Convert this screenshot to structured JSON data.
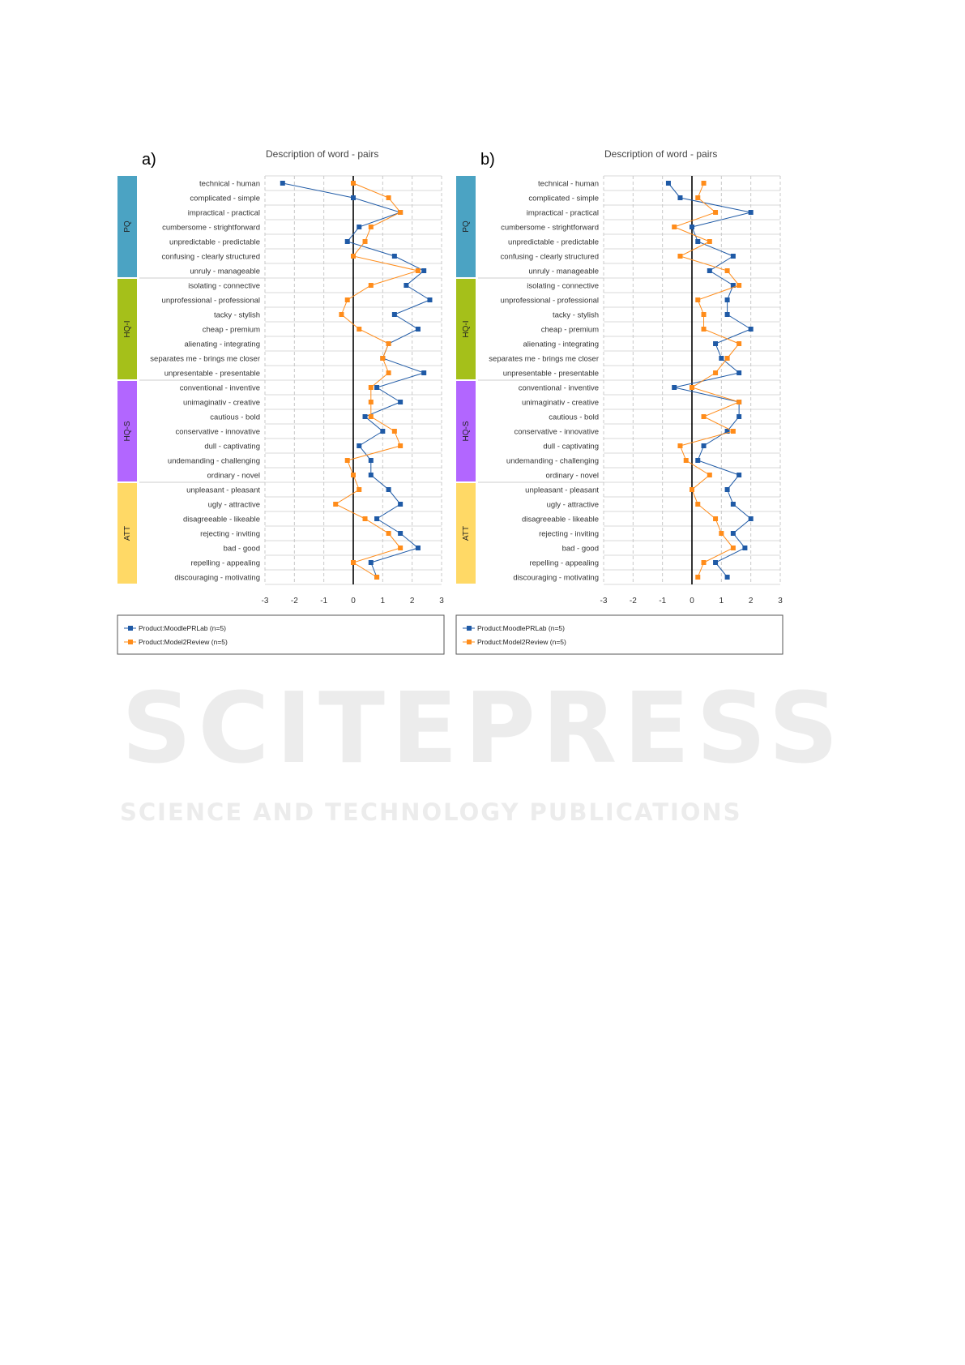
{
  "watermark": {
    "main": "SCITEPRESS",
    "sub": "SCIENCE AND TECHNOLOGY PUBLICATIONS"
  },
  "colors": {
    "blue": "#1f5aa6",
    "orange": "#ff8c1a",
    "PQ": "#4ba3c3",
    "HQ-I": "#a5c01a",
    "HQ-S": "#b266ff",
    "ATT": "#ffd966"
  },
  "chart_data": [
    {
      "type": "line",
      "panel_label": "a)",
      "title": "Description of word - pairs",
      "xlim": [
        -3,
        3
      ],
      "xticks": [
        "-3",
        "-2",
        "-1",
        "0",
        "1",
        "2",
        "3"
      ],
      "groups": [
        {
          "name": "PQ",
          "count": 7
        },
        {
          "name": "HQ-I",
          "count": 7
        },
        {
          "name": "HQ-S",
          "count": 7
        },
        {
          "name": "ATT",
          "count": 7
        }
      ],
      "categories": [
        "technical - human",
        "complicated - simple",
        "impractical - practical",
        "cumbersome - strightforward",
        "unpredictable - predictable",
        "confusing - clearly structured",
        "unruly - manageable",
        "isolating - connective",
        "unprofessional - professional",
        "tacky - stylish",
        "cheap - premium",
        "alienating - integrating",
        "separates me - brings me closer",
        "unpresentable - presentable",
        "conventional - inventive",
        "unimaginativ - creative",
        "cautious - bold",
        "conservative - innovative",
        "dull - captivating",
        "undemanding - challenging",
        "ordinary - novel",
        "unpleasant - pleasant",
        "ugly - attractive",
        "disagreeable - likeable",
        "rejecting - inviting",
        "bad - good",
        "repelling - appealing",
        "discouraging - motivating"
      ],
      "series": [
        {
          "name": "Product:MoodlePRLab (n=5)",
          "color": "blue",
          "values": [
            -2.4,
            0,
            1.6,
            0.2,
            -0.2,
            1.4,
            2.4,
            1.8,
            2.6,
            1.4,
            2.2,
            1.2,
            1.0,
            2.4,
            0.8,
            1.6,
            0.4,
            1.0,
            0.2,
            0.6,
            0.6,
            1.2,
            1.6,
            0.8,
            1.6,
            2.2,
            0.6,
            0.8
          ]
        },
        {
          "name": "Product:Model2Review (n=5)",
          "color": "orange",
          "values": [
            0,
            1.2,
            1.6,
            0.6,
            0.4,
            0,
            2.2,
            0.6,
            -0.2,
            -0.4,
            0.2,
            1.2,
            1.0,
            1.2,
            0.6,
            0.6,
            0.6,
            1.4,
            1.6,
            -0.2,
            0,
            0.2,
            -0.6,
            0.4,
            1.2,
            1.6,
            0,
            0.8
          ]
        }
      ],
      "legend_position": "bottom"
    },
    {
      "type": "line",
      "panel_label": "b)",
      "title": "Description of word - pairs",
      "xlim": [
        -3,
        3
      ],
      "xticks": [
        "-3",
        "-2",
        "-1",
        "0",
        "1",
        "2",
        "3"
      ],
      "groups": [
        {
          "name": "PQ",
          "count": 7
        },
        {
          "name": "HQ-I",
          "count": 7
        },
        {
          "name": "HQ-S",
          "count": 7
        },
        {
          "name": "ATT",
          "count": 7
        }
      ],
      "categories": [
        "technical - human",
        "complicated - simple",
        "impractical - practical",
        "cumbersome - strightforward",
        "unpredictable - predictable",
        "confusing - clearly structured",
        "unruly - manageable",
        "isolating - connective",
        "unprofessional - professional",
        "tacky - stylish",
        "cheap - premium",
        "alienating - integrating",
        "separates me - brings me closer",
        "unpresentable - presentable",
        "conventional - inventive",
        "unimaginativ - creative",
        "cautious - bold",
        "conservative - innovative",
        "dull - captivating",
        "undemanding - challenging",
        "ordinary - novel",
        "unpleasant - pleasant",
        "ugly - attractive",
        "disagreeable - likeable",
        "rejecting - inviting",
        "bad - good",
        "repelling - appealing",
        "discouraging - motivating"
      ],
      "series": [
        {
          "name": "Product:MoodlePRLab (n=5)",
          "color": "blue",
          "values": [
            -0.8,
            -0.4,
            2.0,
            0,
            0.2,
            1.4,
            0.6,
            1.4,
            1.2,
            1.2,
            2.0,
            0.8,
            1.0,
            1.6,
            -0.6,
            1.6,
            1.6,
            1.2,
            0.4,
            0.2,
            1.6,
            1.2,
            1.4,
            2.0,
            1.4,
            1.8,
            0.8,
            1.2
          ]
        },
        {
          "name": "Product:Model2Review (n=5)",
          "color": "orange",
          "values": [
            0.4,
            0.2,
            0.8,
            -0.6,
            0.6,
            -0.4,
            1.2,
            1.6,
            0.2,
            0.4,
            0.4,
            1.6,
            1.2,
            0.8,
            0,
            1.6,
            0.4,
            1.4,
            -0.4,
            -0.2,
            0.6,
            0,
            0.2,
            0.8,
            1.0,
            1.4,
            0.4,
            0.2
          ]
        }
      ],
      "legend_position": "bottom"
    }
  ]
}
